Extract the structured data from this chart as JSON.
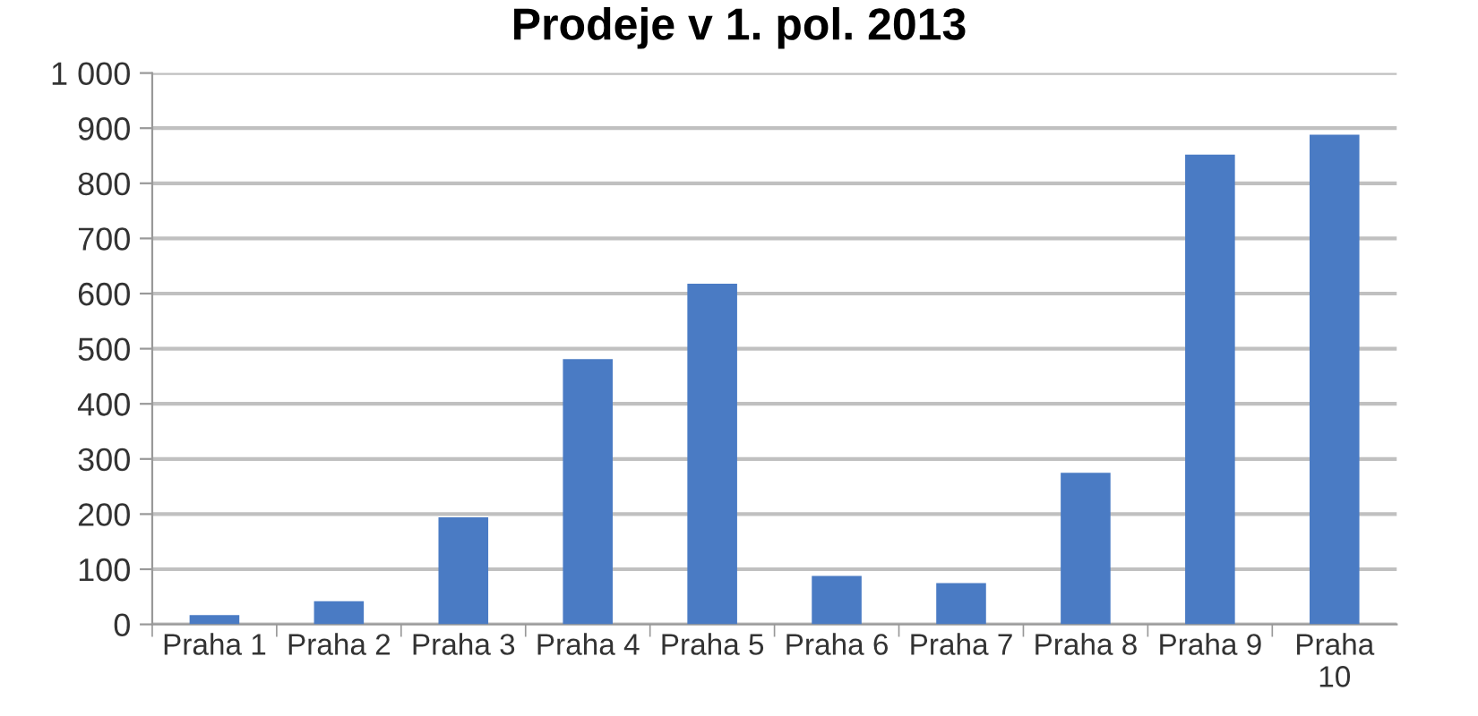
{
  "chart_data": {
    "type": "bar",
    "title": "Prodeje v 1. pol. 2013",
    "categories": [
      "Praha 1",
      "Praha 2",
      "Praha 3",
      "Praha 4",
      "Praha 5",
      "Praha 6",
      "Praha 7",
      "Praha 8",
      "Praha 9",
      "Praha\n10"
    ],
    "values": [
      17,
      42,
      194,
      481,
      618,
      88,
      75,
      275,
      852,
      888
    ],
    "color": "#4a7bc4",
    "ylim": [
      0,
      1000
    ],
    "yticks": [
      0,
      100,
      200,
      300,
      400,
      500,
      600,
      700,
      800,
      900,
      {
        "value": 1000,
        "label": "1 000"
      }
    ],
    "grid": "y"
  }
}
